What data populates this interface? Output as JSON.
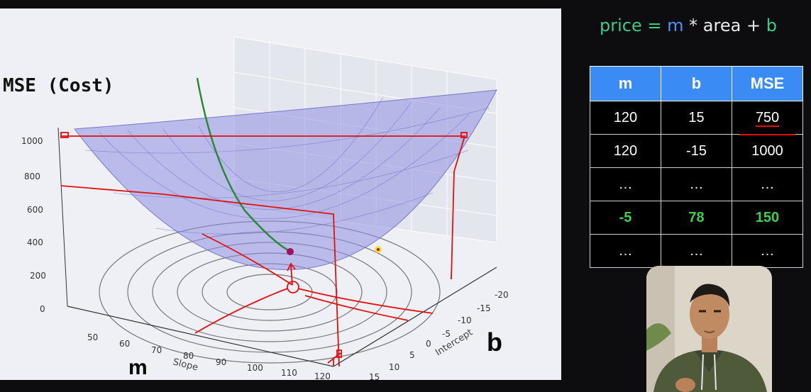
{
  "equation": {
    "lhs": "price",
    "eq": "=",
    "m": "m",
    "op1": "*",
    "area": "area",
    "op2": "+",
    "b": "b"
  },
  "plot": {
    "cost_label": "MSE (Cost)",
    "z_ticks": [
      "1000",
      "800",
      "600",
      "400",
      "200",
      "0"
    ],
    "slope_ticks": [
      "50",
      "60",
      "70",
      "80",
      "90",
      "100",
      "110",
      "120"
    ],
    "intercept_ticks": [
      "-20",
      "-15",
      "-10",
      "-5",
      "0",
      "5",
      "10",
      "15"
    ],
    "slope_axis_label": "Slope",
    "intercept_axis_label": "Intercept",
    "m_annotation": "m",
    "b_annotation": "b",
    "colors": {
      "surface": "#8f8fe0",
      "annotation": "#e11010",
      "path": "#2a8a3a"
    }
  },
  "table": {
    "headers": [
      "m",
      "b",
      "MSE"
    ],
    "rows": [
      [
        "120",
        "15",
        "750"
      ],
      [
        "120",
        "-15",
        "1000"
      ],
      [
        "…",
        "…",
        "…"
      ],
      [
        "-5",
        "78",
        "150"
      ],
      [
        "…",
        "…",
        "…"
      ]
    ],
    "highlight_row": 3,
    "colors": {
      "header": "#3a8cf4",
      "highlight": "#3fcf4f"
    }
  },
  "webcam": {
    "icon": "person-icon"
  }
}
